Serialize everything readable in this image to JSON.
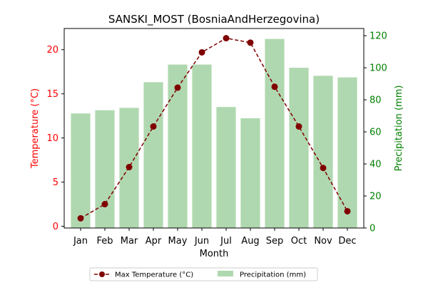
{
  "chart_data": {
    "type": "bar",
    "title": "SANSKI_MOST (BosniaAndHerzegovina)",
    "xlabel": "Month",
    "ylabel_left": "Temperature (°C)",
    "ylabel_right": "Precipitation (mm)",
    "categories": [
      "Jan",
      "Feb",
      "Mar",
      "Apr",
      "May",
      "Jun",
      "Jul",
      "Aug",
      "Sep",
      "Oct",
      "Nov",
      "Dec"
    ],
    "series": [
      {
        "name": "Max Temperature (°C)",
        "kind": "line",
        "axis": "left",
        "color": "#800000",
        "values": [
          0.9,
          2.5,
          6.7,
          11.3,
          15.7,
          19.7,
          21.3,
          20.8,
          15.8,
          11.3,
          6.6,
          1.7
        ]
      },
      {
        "name": "Precipitation (mm)",
        "kind": "bar",
        "axis": "right",
        "color": "#b0d8b0",
        "values": [
          71.5,
          73.5,
          75,
          91,
          102,
          102,
          75.5,
          68.5,
          118,
          100,
          95,
          94
        ]
      }
    ],
    "ylim_left": [
      -0.2,
      22.4
    ],
    "yticks_left": [
      0,
      5,
      10,
      15,
      20
    ],
    "ylim_right": [
      0,
      124.5
    ],
    "yticks_right": [
      0,
      20,
      40,
      60,
      80,
      100,
      120
    ],
    "left_axis_color": "#ff0000",
    "right_axis_color": "#008000",
    "legend_placement": "bottom-center",
    "grid": false
  }
}
